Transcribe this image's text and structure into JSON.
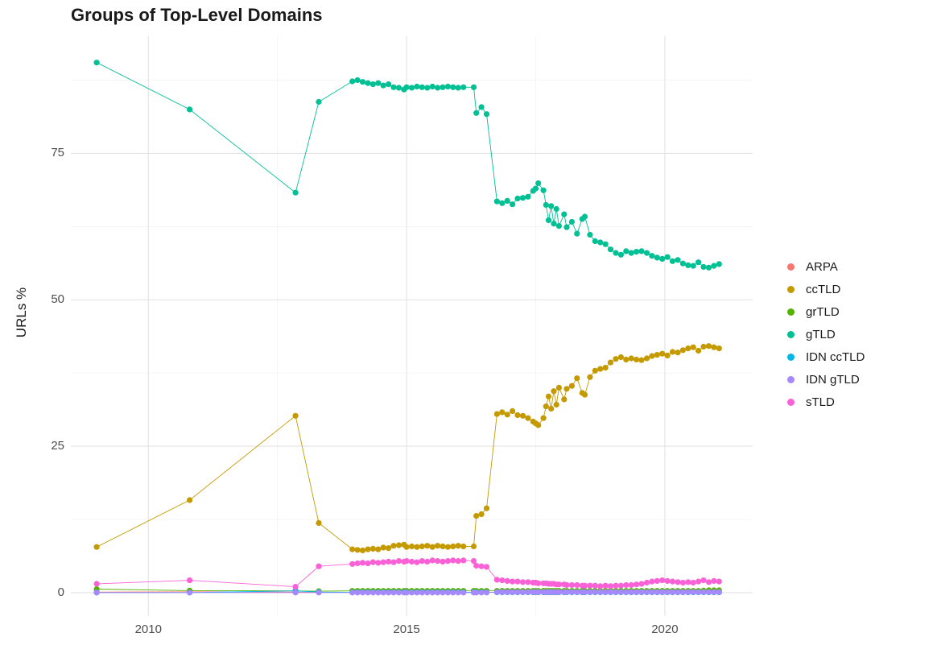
{
  "chart": {
    "title": "Groups of Top-Level Domains",
    "ylabel": "URLs %",
    "xlabel": ""
  },
  "chart_data": {
    "type": "line",
    "title": "Groups of Top-Level Domains",
    "xlabel": "",
    "ylabel": "URLs %",
    "grid": true,
    "legend_position": "right",
    "x_domain": [
      2008.5,
      2021.7
    ],
    "y_domain": [
      -4,
      95
    ],
    "x_ticks": [
      2010,
      2015,
      2020
    ],
    "x_tick_labels": [
      "2010",
      "2015",
      "2020"
    ],
    "x_minor": [
      2012.5,
      2017.5
    ],
    "y_ticks": [
      0,
      25,
      50,
      75
    ],
    "y_tick_labels": [
      "0",
      "25",
      "50",
      "75"
    ],
    "y_minor": [
      12.5,
      37.5,
      62.5,
      87.5
    ],
    "x": [
      2009.0,
      2010.8,
      2012.85,
      2013.3,
      2013.95,
      2014.05,
      2014.15,
      2014.25,
      2014.35,
      2014.45,
      2014.55,
      2014.65,
      2014.75,
      2014.85,
      2014.95,
      2015.0,
      2015.1,
      2015.2,
      2015.3,
      2015.4,
      2015.5,
      2015.6,
      2015.7,
      2015.8,
      2015.9,
      2016.0,
      2016.1,
      2016.3,
      2016.35,
      2016.45,
      2016.55,
      2016.75,
      2016.85,
      2016.95,
      2017.05,
      2017.15,
      2017.25,
      2017.35,
      2017.45,
      2017.5,
      2017.55,
      2017.65,
      2017.7,
      2017.75,
      2017.8,
      2017.85,
      2017.9,
      2017.95,
      2018.05,
      2018.1,
      2018.2,
      2018.3,
      2018.4,
      2018.45,
      2018.55,
      2018.65,
      2018.75,
      2018.85,
      2018.95,
      2019.05,
      2019.15,
      2019.25,
      2019.35,
      2019.45,
      2019.55,
      2019.65,
      2019.75,
      2019.85,
      2019.95,
      2020.05,
      2020.15,
      2020.25,
      2020.35,
      2020.45,
      2020.55,
      2020.65,
      2020.75,
      2020.85,
      2020.95,
      2021.05
    ],
    "series": [
      {
        "name": "ARPA",
        "color": "#F8766D",
        "y": [
          0.1,
          0.15,
          0.1,
          0.05,
          0.05,
          0.05,
          0.05,
          0.05,
          0.05,
          0.05,
          0.05,
          0.05,
          0.05,
          0.05,
          0.05,
          0.05,
          0.05,
          0.05,
          0.05,
          0.05,
          0.05,
          0.05,
          0.05,
          0.05,
          0.05,
          0.05,
          0.05,
          0.05,
          0.05,
          0.05,
          0.05,
          0.05,
          0.05,
          0.05,
          0.05,
          0.05,
          0.05,
          0.05,
          0.05,
          0.05,
          0.05,
          0.05,
          0.05,
          0.05,
          0.05,
          0.05,
          0.05,
          0.05,
          0.05,
          0.05,
          0.05,
          0.05,
          0.05,
          0.05,
          0.05,
          0.05,
          0.05,
          0.05,
          0.05,
          0.05,
          0.05,
          0.05,
          0.05,
          0.05,
          0.05,
          0.05,
          0.05,
          0.05,
          0.05,
          0.05,
          0.05,
          0.05,
          0.05,
          0.05,
          0.05,
          0.05,
          0.05,
          0.05,
          0.05,
          0.05
        ]
      },
      {
        "name": "ccTLD",
        "color": "#C49A00",
        "y": [
          7.8,
          15.8,
          30.2,
          11.9,
          7.4,
          7.3,
          7.2,
          7.4,
          7.5,
          7.4,
          7.7,
          7.6,
          8.0,
          8.1,
          8.2,
          7.8,
          7.9,
          7.8,
          7.9,
          8.0,
          7.8,
          8.0,
          7.9,
          7.8,
          7.9,
          8.0,
          7.9,
          7.9,
          13.1,
          13.4,
          14.4,
          30.5,
          30.8,
          30.4,
          31.0,
          30.3,
          30.2,
          29.8,
          29.2,
          28.9,
          28.6,
          29.8,
          31.8,
          33.5,
          31.4,
          34.4,
          32.1,
          35.0,
          33.0,
          34.8,
          35.3,
          36.6,
          34.1,
          33.8,
          36.8,
          37.9,
          38.2,
          38.4,
          39.3,
          39.9,
          40.2,
          39.8,
          40.0,
          39.8,
          39.7,
          40.0,
          40.4,
          40.6,
          40.8,
          40.5,
          41.1,
          41.0,
          41.4,
          41.7,
          41.9,
          41.3,
          42.0,
          42.1,
          41.9,
          41.7
        ]
      },
      {
        "name": "grTLD",
        "color": "#53B400",
        "y": [
          0.6,
          0.35,
          0.3,
          0.25,
          0.3,
          0.3,
          0.3,
          0.3,
          0.3,
          0.3,
          0.3,
          0.3,
          0.3,
          0.3,
          0.3,
          0.3,
          0.3,
          0.3,
          0.3,
          0.3,
          0.3,
          0.3,
          0.3,
          0.3,
          0.3,
          0.3,
          0.3,
          0.3,
          0.3,
          0.3,
          0.3,
          0.3,
          0.3,
          0.3,
          0.3,
          0.3,
          0.3,
          0.3,
          0.3,
          0.3,
          0.3,
          0.3,
          0.3,
          0.3,
          0.3,
          0.3,
          0.3,
          0.3,
          0.3,
          0.3,
          0.3,
          0.3,
          0.3,
          0.3,
          0.3,
          0.3,
          0.3,
          0.3,
          0.3,
          0.3,
          0.3,
          0.3,
          0.3,
          0.3,
          0.3,
          0.3,
          0.3,
          0.3,
          0.3,
          0.3,
          0.3,
          0.3,
          0.3,
          0.3,
          0.3,
          0.3,
          0.35,
          0.4,
          0.4,
          0.4
        ]
      },
      {
        "name": "gTLD",
        "color": "#00C094",
        "y": [
          90.5,
          82.5,
          68.3,
          83.8,
          87.3,
          87.5,
          87.2,
          87.0,
          86.8,
          87.0,
          86.6,
          86.8,
          86.3,
          86.2,
          85.9,
          86.3,
          86.2,
          86.4,
          86.3,
          86.2,
          86.4,
          86.2,
          86.3,
          86.4,
          86.3,
          86.2,
          86.3,
          86.3,
          81.9,
          82.9,
          81.7,
          66.8,
          66.5,
          66.9,
          66.3,
          67.3,
          67.4,
          67.6,
          68.6,
          69.0,
          69.9,
          68.7,
          66.2,
          63.6,
          66.0,
          63.0,
          65.5,
          62.6,
          64.6,
          62.4,
          63.3,
          61.3,
          63.8,
          64.2,
          61.1,
          60.0,
          59.8,
          59.5,
          58.6,
          58.0,
          57.7,
          58.3,
          58.0,
          58.2,
          58.3,
          58.0,
          57.5,
          57.2,
          57.0,
          57.3,
          56.6,
          56.8,
          56.2,
          55.9,
          55.8,
          56.4,
          55.6,
          55.5,
          55.8,
          56.1
        ]
      },
      {
        "name": "IDN ccTLD",
        "color": "#00B6EB",
        "y": [
          0.02,
          0.02,
          0.3,
          0.1,
          0.05,
          0.05,
          0.05,
          0.05,
          0.05,
          0.05,
          0.05,
          0.05,
          0.05,
          0.05,
          0.05,
          0.05,
          0.05,
          0.05,
          0.05,
          0.05,
          0.05,
          0.05,
          0.05,
          0.05,
          0.05,
          0.05,
          0.05,
          0.05,
          0.05,
          0.05,
          0.05,
          0.05,
          0.05,
          0.05,
          0.05,
          0.05,
          0.05,
          0.05,
          0.05,
          0.05,
          0.05,
          0.05,
          0.05,
          0.05,
          0.05,
          0.05,
          0.05,
          0.05,
          0.05,
          0.05,
          0.05,
          0.05,
          0.05,
          0.05,
          0.05,
          0.05,
          0.05,
          0.05,
          0.05,
          0.05,
          0.05,
          0.05,
          0.05,
          0.05,
          0.05,
          0.05,
          0.05,
          0.05,
          0.05,
          0.05,
          0.05,
          0.05,
          0.05,
          0.05,
          0.05,
          0.05,
          0.05,
          0.05,
          0.05,
          0.05
        ]
      },
      {
        "name": "IDN gTLD",
        "color": "#A58AFF",
        "y": [
          0.02,
          0.02,
          0.02,
          0.02,
          0.02,
          0.02,
          0.02,
          0.02,
          0.02,
          0.02,
          0.02,
          0.02,
          0.02,
          0.02,
          0.02,
          0.02,
          0.02,
          0.02,
          0.02,
          0.02,
          0.02,
          0.02,
          0.02,
          0.02,
          0.02,
          0.02,
          0.02,
          0.02,
          0.02,
          0.02,
          0.02,
          0.1,
          0.1,
          0.1,
          0.1,
          0.1,
          0.1,
          0.1,
          0.1,
          0.1,
          0.1,
          0.1,
          0.1,
          0.1,
          0.1,
          0.1,
          0.1,
          0.1,
          0.1,
          0.1,
          0.1,
          0.1,
          0.1,
          0.1,
          0.1,
          0.1,
          0.1,
          0.1,
          0.1,
          0.1,
          0.1,
          0.1,
          0.1,
          0.1,
          0.1,
          0.1,
          0.1,
          0.1,
          0.1,
          0.1,
          0.1,
          0.1,
          0.1,
          0.1,
          0.1,
          0.1,
          0.1,
          0.1,
          0.1,
          0.1
        ]
      },
      {
        "name": "sTLD",
        "color": "#FB61D7",
        "y": [
          1.5,
          2.1,
          1.0,
          4.5,
          4.9,
          5.0,
          5.1,
          5.0,
          5.2,
          5.1,
          5.2,
          5.3,
          5.2,
          5.4,
          5.3,
          5.4,
          5.3,
          5.2,
          5.4,
          5.3,
          5.5,
          5.4,
          5.3,
          5.4,
          5.5,
          5.4,
          5.5,
          5.4,
          4.6,
          4.5,
          4.4,
          2.2,
          2.1,
          2.0,
          1.9,
          1.9,
          1.8,
          1.8,
          1.7,
          1.7,
          1.6,
          1.6,
          1.6,
          1.5,
          1.5,
          1.5,
          1.4,
          1.4,
          1.4,
          1.3,
          1.3,
          1.3,
          1.2,
          1.2,
          1.2,
          1.2,
          1.1,
          1.2,
          1.1,
          1.2,
          1.2,
          1.3,
          1.3,
          1.4,
          1.5,
          1.7,
          1.9,
          2.0,
          2.1,
          2.0,
          1.9,
          1.8,
          1.7,
          1.8,
          1.7,
          1.9,
          2.1,
          1.8,
          2.0,
          1.9
        ]
      }
    ]
  }
}
